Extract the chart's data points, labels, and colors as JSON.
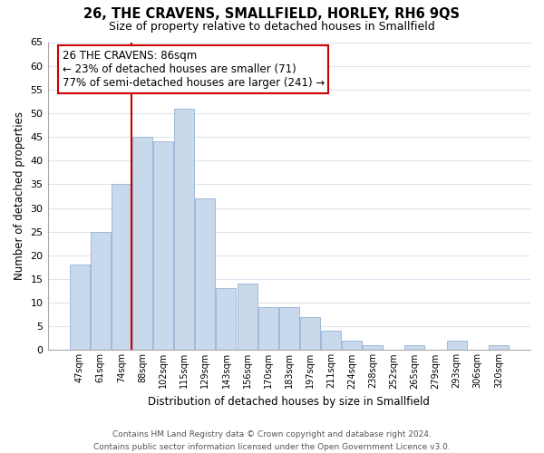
{
  "title": "26, THE CRAVENS, SMALLFIELD, HORLEY, RH6 9QS",
  "subtitle": "Size of property relative to detached houses in Smallfield",
  "xlabel": "Distribution of detached houses by size in Smallfield",
  "ylabel": "Number of detached properties",
  "bar_labels": [
    "47sqm",
    "61sqm",
    "74sqm",
    "88sqm",
    "102sqm",
    "115sqm",
    "129sqm",
    "143sqm",
    "156sqm",
    "170sqm",
    "183sqm",
    "197sqm",
    "211sqm",
    "224sqm",
    "238sqm",
    "252sqm",
    "265sqm",
    "279sqm",
    "293sqm",
    "306sqm",
    "320sqm"
  ],
  "bar_values": [
    18,
    25,
    35,
    45,
    44,
    51,
    32,
    13,
    14,
    9,
    9,
    7,
    4,
    2,
    1,
    0,
    1,
    0,
    2,
    0,
    1
  ],
  "bar_color": "#c8d9ec",
  "bar_edge_color": "#a0b8d8",
  "vline_color": "#cc0000",
  "vline_index": 3,
  "ylim": [
    0,
    65
  ],
  "yticks": [
    0,
    5,
    10,
    15,
    20,
    25,
    30,
    35,
    40,
    45,
    50,
    55,
    60,
    65
  ],
  "annotation_title": "26 THE CRAVENS: 86sqm",
  "annotation_line1": "← 23% of detached houses are smaller (71)",
  "annotation_line2": "77% of semi-detached houses are larger (241) →",
  "annotation_box_color": "#ffffff",
  "annotation_box_edgecolor": "#cc0000",
  "footer_line1": "Contains HM Land Registry data © Crown copyright and database right 2024.",
  "footer_line2": "Contains public sector information licensed under the Open Government Licence v3.0.",
  "bg_color": "#ffffff",
  "grid_color": "#dce6f0"
}
